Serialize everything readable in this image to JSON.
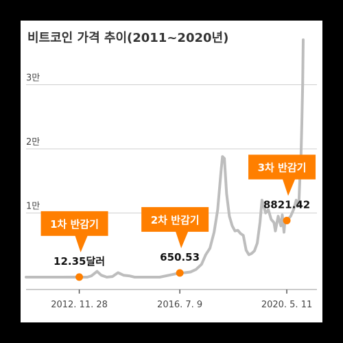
{
  "chart_data": {
    "type": "line",
    "title": "비트코인 가격 추이(2011~2020년)",
    "y_ticks": [
      {
        "value": 10000,
        "label": "1만"
      },
      {
        "value": 20000,
        "label": "2만"
      },
      {
        "value": 30000,
        "label": "3만"
      }
    ],
    "x_ticks": [
      {
        "x": 2012.91,
        "label": "2012. 11. 28"
      },
      {
        "x": 2016.52,
        "label": "2016. 7. 9"
      },
      {
        "x": 2020.36,
        "label": "2020. 5. 11"
      }
    ],
    "xlim": [
      2011.0,
      2020.95
    ],
    "ylim": [
      0,
      37000
    ],
    "series": [
      {
        "points": [
          [
            2011.0,
            0
          ],
          [
            2012.3,
            0
          ],
          [
            2012.91,
            12.35
          ],
          [
            2013.0,
            0
          ],
          [
            2013.2,
            0
          ],
          [
            2013.35,
            200
          ],
          [
            2013.55,
            900
          ],
          [
            2013.7,
            300
          ],
          [
            2013.9,
            0
          ],
          [
            2014.1,
            100
          ],
          [
            2014.3,
            700
          ],
          [
            2014.5,
            300
          ],
          [
            2014.7,
            200
          ],
          [
            2014.9,
            0
          ],
          [
            2015.3,
            0
          ],
          [
            2015.8,
            0
          ],
          [
            2016.52,
            650.53
          ],
          [
            2016.7,
            700
          ],
          [
            2016.9,
            800
          ],
          [
            2017.1,
            1200
          ],
          [
            2017.3,
            2000
          ],
          [
            2017.45,
            3500
          ],
          [
            2017.6,
            4500
          ],
          [
            2017.75,
            7000
          ],
          [
            2017.88,
            10500
          ],
          [
            2018.0,
            16500
          ],
          [
            2018.05,
            18800
          ],
          [
            2018.12,
            18500
          ],
          [
            2018.2,
            13000
          ],
          [
            2018.3,
            9500
          ],
          [
            2018.4,
            8000
          ],
          [
            2018.5,
            7200
          ],
          [
            2018.6,
            7300
          ],
          [
            2018.7,
            6800
          ],
          [
            2018.8,
            6500
          ],
          [
            2018.9,
            4200
          ],
          [
            2019.0,
            3500
          ],
          [
            2019.1,
            3700
          ],
          [
            2019.2,
            4100
          ],
          [
            2019.3,
            5300
          ],
          [
            2019.4,
            8600
          ],
          [
            2019.47,
            12000
          ],
          [
            2019.52,
            11300
          ],
          [
            2019.6,
            10000
          ],
          [
            2019.7,
            10500
          ],
          [
            2019.8,
            9000
          ],
          [
            2019.9,
            8500
          ],
          [
            2019.95,
            7200
          ],
          [
            2020.05,
            9500
          ],
          [
            2020.15,
            8000
          ],
          [
            2020.2,
            9700
          ],
          [
            2020.26,
            7000
          ],
          [
            2020.3,
            9000
          ],
          [
            2020.36,
            8821.42
          ],
          [
            2020.5,
            9500
          ],
          [
            2020.6,
            10500
          ],
          [
            2020.7,
            12000
          ],
          [
            2020.75,
            11000
          ],
          [
            2020.8,
            12000
          ],
          [
            2020.84,
            16500
          ],
          [
            2020.87,
            19000
          ],
          [
            2020.9,
            24000
          ],
          [
            2020.93,
            30000
          ],
          [
            2020.95,
            37000
          ]
        ]
      }
    ],
    "annotations": [
      {
        "x": 2012.91,
        "y": 12.35,
        "label": "12.35달러",
        "callout": "1차 반감기"
      },
      {
        "x": 2016.52,
        "y": 650.53,
        "label": "650.53",
        "callout": "2차 반감기"
      },
      {
        "x": 2020.36,
        "y": 8821.42,
        "label": "8821.42",
        "callout": "3차 반감기"
      }
    ],
    "grid": true,
    "colors": {
      "line": "#bdbdbd",
      "accent": "#ff7f00",
      "grid": "#cfcfcf",
      "text": "#333333"
    }
  }
}
